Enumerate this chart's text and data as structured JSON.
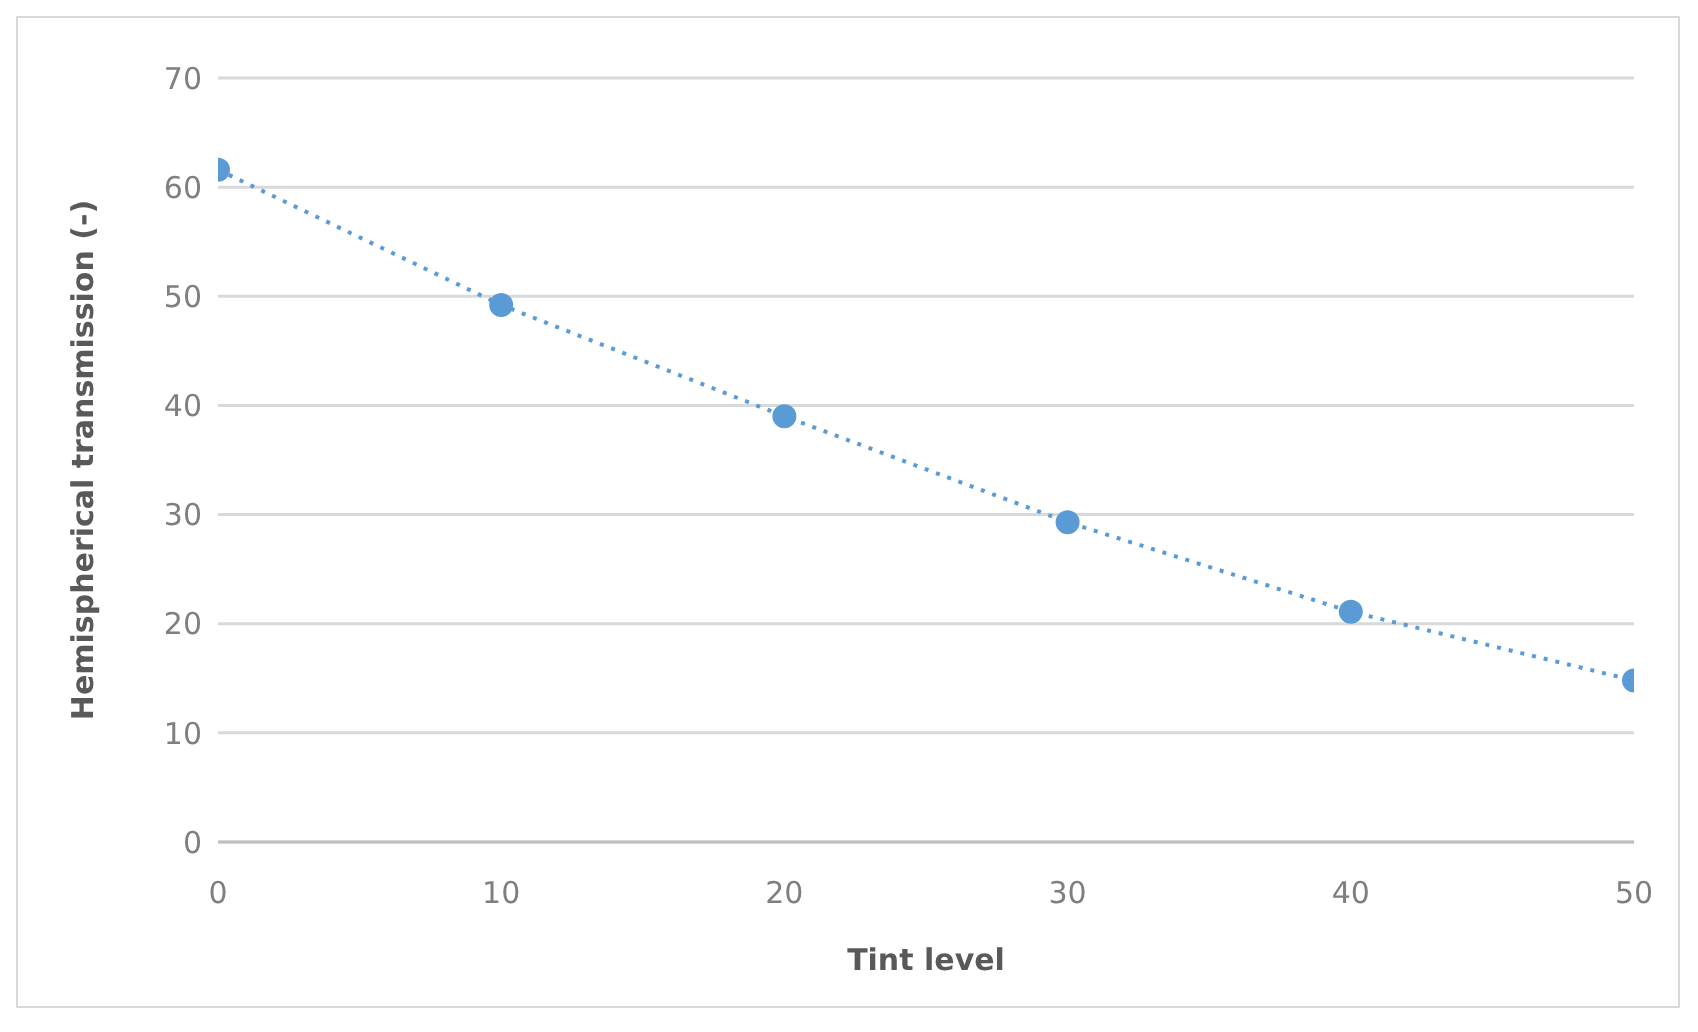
{
  "chart_data": {
    "type": "line",
    "xlabel": "Tint level",
    "ylabel": "Hemispherical transmission (-)",
    "x": [
      0,
      10,
      20,
      30,
      40,
      50
    ],
    "series": [
      {
        "color": "#5b9bd5",
        "values": [
          61.6,
          49.2,
          39.0,
          29.3,
          21.1,
          14.8
        ]
      }
    ],
    "xlim": [
      0,
      50
    ],
    "xticks": [
      0,
      10,
      20,
      30,
      40,
      50
    ],
    "ylim": [
      0,
      70
    ],
    "yticks": [
      0,
      10,
      20,
      30,
      40,
      50,
      60,
      70
    ],
    "grid": "y",
    "marker": "circle",
    "line_style": "dotted",
    "legend": false
  }
}
